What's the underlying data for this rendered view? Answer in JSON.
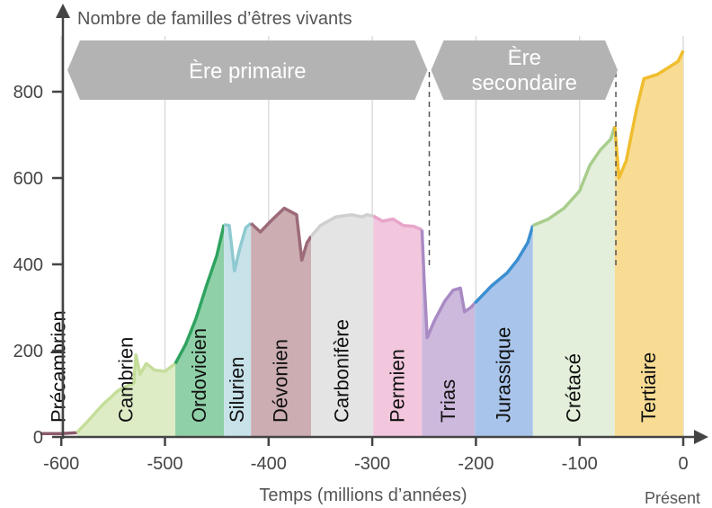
{
  "chart_data": {
    "type": "area",
    "title": "",
    "ylabel": "Nombre de familles d’êtres vivants",
    "xlabel": "Temps (millions d’années)",
    "present_label": "Présent",
    "xlim": [
      -625,
      5
    ],
    "ylim": [
      0,
      930
    ],
    "x_ticks": [
      -600,
      -500,
      -400,
      -300,
      -200,
      -100,
      0
    ],
    "x_tick_labels": [
      "-600",
      "-500",
      "-400",
      "-300",
      "-200",
      "-100",
      "0"
    ],
    "y_ticks": [
      0,
      200,
      400,
      600,
      800
    ],
    "y_tick_labels": [
      "0",
      "200",
      "400",
      "600",
      "800"
    ],
    "grid": "vertical",
    "eras": [
      {
        "label_lines": [
          "Ère primaire"
        ],
        "start": -620,
        "end": -245,
        "color": "#b3b3b3"
      },
      {
        "label_lines": [
          "Ère",
          "secondaire"
        ],
        "start": -245,
        "end": -65,
        "color": "#b3b3b3"
      }
    ],
    "era_dividers": [
      -245,
      -65
    ],
    "periods": [
      {
        "name": "Précambrien",
        "start": -620,
        "end": -585,
        "fill": "#ffffff",
        "line": "#8b5a6b",
        "points": [
          [
            -620,
            8
          ],
          [
            -600,
            8
          ],
          [
            -585,
            10
          ]
        ]
      },
      {
        "name": "Cambrien",
        "start": -585,
        "end": -490,
        "fill": "#deecc6",
        "line": "#c4de9a",
        "points": [
          [
            -585,
            10
          ],
          [
            -575,
            35
          ],
          [
            -560,
            75
          ],
          [
            -545,
            108
          ],
          [
            -535,
            120
          ],
          [
            -530,
            125
          ],
          [
            -528,
            190
          ],
          [
            -524,
            145
          ],
          [
            -518,
            170
          ],
          [
            -510,
            155
          ],
          [
            -500,
            152
          ],
          [
            -490,
            170
          ]
        ]
      },
      {
        "name": "Ordovicien",
        "start": -490,
        "end": -443,
        "fill": "#8fd0a8",
        "line": "#2fa35f",
        "points": [
          [
            -490,
            170
          ],
          [
            -480,
            215
          ],
          [
            -470,
            275
          ],
          [
            -460,
            350
          ],
          [
            -450,
            420
          ],
          [
            -443,
            492
          ]
        ]
      },
      {
        "name": "Silurien",
        "start": -443,
        "end": -417,
        "fill": "#c8e2ea",
        "line": "#8ecad0",
        "points": [
          [
            -443,
            492
          ],
          [
            -438,
            490
          ],
          [
            -433,
            385
          ],
          [
            -428,
            435
          ],
          [
            -422,
            485
          ],
          [
            -417,
            495
          ]
        ]
      },
      {
        "name": "Dévonien",
        "start": -417,
        "end": -359,
        "fill": "#cbadb2",
        "line": "#9c6a78",
        "points": [
          [
            -417,
            495
          ],
          [
            -408,
            475
          ],
          [
            -398,
            500
          ],
          [
            -385,
            530
          ],
          [
            -373,
            515
          ],
          [
            -368,
            410
          ],
          [
            -363,
            450
          ],
          [
            -359,
            465
          ]
        ]
      },
      {
        "name": "Carbonifère",
        "start": -359,
        "end": -299,
        "fill": "#e4e4e4",
        "line": "#cfcfcf",
        "points": [
          [
            -359,
            465
          ],
          [
            -350,
            490
          ],
          [
            -335,
            510
          ],
          [
            -320,
            515
          ],
          [
            -310,
            510
          ],
          [
            -305,
            515
          ],
          [
            -299,
            512
          ]
        ]
      },
      {
        "name": "Permien",
        "start": -299,
        "end": -252,
        "fill": "#f2c7dd",
        "line": "#e7a5c9",
        "points": [
          [
            -299,
            512
          ],
          [
            -290,
            500
          ],
          [
            -280,
            505
          ],
          [
            -270,
            490
          ],
          [
            -260,
            488
          ],
          [
            -252,
            480
          ]
        ]
      },
      {
        "name": "Trias",
        "start": -252,
        "end": -201,
        "fill": "#cdb9dc",
        "line": "#a98ac4",
        "points": [
          [
            -252,
            480
          ],
          [
            -250,
            365
          ],
          [
            -247,
            230
          ],
          [
            -240,
            270
          ],
          [
            -230,
            315
          ],
          [
            -222,
            340
          ],
          [
            -215,
            345
          ],
          [
            -211,
            290
          ],
          [
            -205,
            300
          ],
          [
            -201,
            310
          ]
        ]
      },
      {
        "name": "Jurassique",
        "start": -201,
        "end": -145,
        "fill": "#a9c4ea",
        "line": "#3b8fd0",
        "points": [
          [
            -201,
            310
          ],
          [
            -185,
            350
          ],
          [
            -170,
            380
          ],
          [
            -160,
            410
          ],
          [
            -150,
            450
          ],
          [
            -145,
            490
          ]
        ]
      },
      {
        "name": "Crétacé",
        "start": -145,
        "end": -66,
        "fill": "#e3efda",
        "line": "#a8cd8c",
        "points": [
          [
            -145,
            490
          ],
          [
            -130,
            505
          ],
          [
            -115,
            530
          ],
          [
            -100,
            570
          ],
          [
            -90,
            630
          ],
          [
            -80,
            665
          ],
          [
            -70,
            690
          ],
          [
            -66,
            720
          ]
        ]
      },
      {
        "name": "Tertiaire",
        "start": -66,
        "end": 0,
        "fill": "#f8dc93",
        "line": "#f0bd2e",
        "points": [
          [
            -66,
            720
          ],
          [
            -62,
            600
          ],
          [
            -55,
            640
          ],
          [
            -45,
            760
          ],
          [
            -38,
            830
          ],
          [
            -25,
            840
          ],
          [
            -15,
            855
          ],
          [
            -5,
            870
          ],
          [
            0,
            895
          ]
        ]
      }
    ]
  }
}
